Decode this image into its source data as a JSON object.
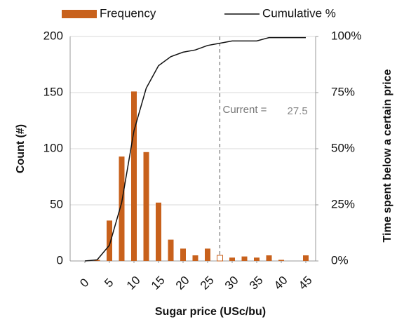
{
  "chart_data": {
    "type": "histogram-cumulative",
    "x_label": "Sugar price (USc/bu)",
    "y_label": "Count (#)",
    "y2_label": "Time spent below a certain price",
    "xlim": [
      -3,
      47
    ],
    "xticks": [
      0,
      5,
      10,
      15,
      20,
      25,
      30,
      35,
      40,
      45
    ],
    "ylim": [
      0,
      200
    ],
    "yticks": [
      0,
      50,
      100,
      150,
      200
    ],
    "y2lim": [
      0,
      100
    ],
    "y2ticks": [
      {
        "value": 0,
        "label": "0%"
      },
      {
        "value": 25,
        "label": "25%"
      },
      {
        "value": 50,
        "label": "50%"
      },
      {
        "value": 75,
        "label": "75%"
      },
      {
        "value": 100,
        "label": "100%"
      }
    ],
    "series": [
      {
        "name": "Frequency",
        "type": "bar",
        "color": "#c8611c",
        "x": [
          2.5,
          5,
          7.5,
          10,
          12.5,
          15,
          17.5,
          20,
          22.5,
          25,
          27.5,
          30,
          32.5,
          35,
          37.5,
          40,
          42.5,
          45
        ],
        "values": [
          1,
          36,
          93,
          151,
          97,
          52,
          19,
          11,
          5,
          11,
          5,
          3,
          4,
          3,
          5,
          1,
          0,
          5
        ]
      },
      {
        "name": "Cumulative %",
        "type": "line",
        "axis": "y2",
        "color": "#111111",
        "x": [
          0,
          2.5,
          5,
          7.5,
          10,
          12.5,
          15,
          17.5,
          20,
          22.5,
          25,
          27.5,
          30,
          32.5,
          35,
          37.5,
          40,
          42.5,
          45
        ],
        "values": [
          0,
          0.5,
          7,
          26,
          58,
          77,
          87,
          91,
          93,
          94,
          96,
          97,
          98,
          98,
          98,
          99.5,
          99.5,
          99.5,
          99.5
        ]
      }
    ],
    "annotation": {
      "label": "Current =",
      "value": 27.5
    }
  }
}
